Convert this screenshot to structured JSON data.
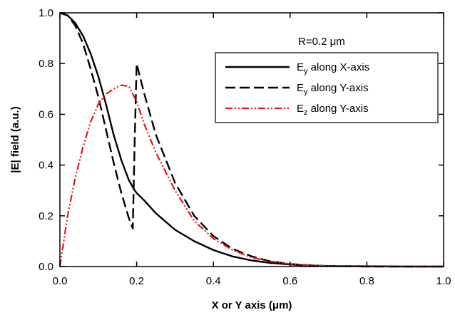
{
  "chart_data": {
    "type": "line",
    "title": "",
    "xlabel": "X  or Y axis (μm)",
    "ylabel": "|E| field (a.u.)",
    "xlim": [
      0.0,
      1.0
    ],
    "ylim": [
      0.0,
      1.0
    ],
    "xticks": [
      "0.0",
      "0.2",
      "0.4",
      "0.6",
      "0.8",
      "1.0"
    ],
    "yticks": [
      "0.0",
      "0.2",
      "0.4",
      "0.6",
      "0.8",
      "1.0"
    ],
    "grid": false,
    "legend_position": "top-right",
    "annotation": "R=0.2 μm",
    "series": [
      {
        "name": "Ey along X-axis",
        "label_base": "E",
        "label_sub": "y",
        "label_rest": " along X-axis",
        "color": "#000000",
        "style": "solid",
        "x": [
          0.0,
          0.02,
          0.04,
          0.06,
          0.08,
          0.1,
          0.12,
          0.14,
          0.16,
          0.18,
          0.195,
          0.2,
          0.22,
          0.25,
          0.3,
          0.35,
          0.4,
          0.45,
          0.5,
          0.55,
          0.6,
          0.65,
          0.7,
          0.8,
          0.9,
          1.0
        ],
        "y": [
          1.0,
          0.99,
          0.96,
          0.91,
          0.84,
          0.75,
          0.64,
          0.52,
          0.42,
          0.34,
          0.3,
          0.29,
          0.26,
          0.21,
          0.145,
          0.1,
          0.065,
          0.04,
          0.024,
          0.014,
          0.008,
          0.004,
          0.002,
          0.001,
          0.0,
          0.0
        ]
      },
      {
        "name": "Ey along Y-axis",
        "label_base": "E",
        "label_sub": "y",
        "label_rest": " along Y-axis",
        "color": "#000000",
        "style": "dashed",
        "x": [
          0.0,
          0.02,
          0.04,
          0.06,
          0.08,
          0.1,
          0.12,
          0.14,
          0.16,
          0.18,
          0.19,
          0.195,
          0.2,
          0.22,
          0.25,
          0.3,
          0.35,
          0.4,
          0.45,
          0.5,
          0.55,
          0.6,
          0.65,
          0.7,
          0.8,
          0.9,
          1.0
        ],
        "y": [
          1.0,
          0.99,
          0.95,
          0.88,
          0.78,
          0.67,
          0.54,
          0.41,
          0.29,
          0.19,
          0.15,
          0.5,
          0.8,
          0.68,
          0.52,
          0.33,
          0.2,
          0.12,
          0.07,
          0.04,
          0.02,
          0.01,
          0.005,
          0.002,
          0.0,
          0.0,
          0.0
        ]
      },
      {
        "name": "Ez along Y-axis",
        "label_base": "E",
        "label_sub": "z",
        "label_rest": " along Y-axis",
        "color": "#e8141e",
        "style": "dash-dot-dot",
        "x": [
          0.0,
          0.01,
          0.02,
          0.04,
          0.06,
          0.08,
          0.1,
          0.12,
          0.14,
          0.16,
          0.18,
          0.2,
          0.22,
          0.25,
          0.3,
          0.35,
          0.4,
          0.45,
          0.5,
          0.55,
          0.6,
          0.65,
          0.7,
          0.8,
          0.9,
          1.0
        ],
        "y": [
          0.0,
          0.1,
          0.2,
          0.35,
          0.47,
          0.57,
          0.64,
          0.68,
          0.7,
          0.715,
          0.71,
          0.65,
          0.56,
          0.45,
          0.3,
          0.18,
          0.11,
          0.065,
          0.035,
          0.02,
          0.01,
          0.005,
          0.002,
          0.0,
          0.0,
          0.0
        ]
      }
    ]
  }
}
